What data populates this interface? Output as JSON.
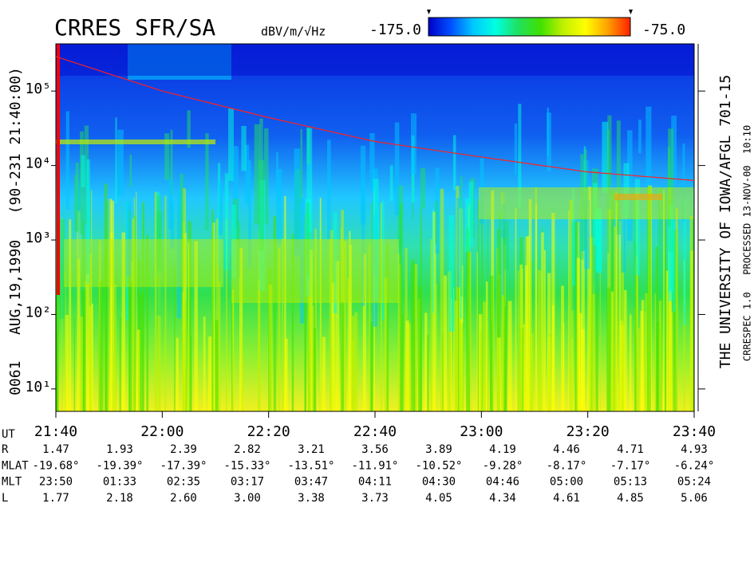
{
  "chart_data": {
    "type": "spectrogram",
    "title": "CRRES SFR/SA",
    "colorbar_label": "dBV/m/√Hz",
    "colorbar_ticks": [
      {
        "value": -175,
        "label": "-175.0"
      },
      {
        "value": -75,
        "label": "-75.0"
      }
    ],
    "colormap": [
      "#0000c8",
      "#0050ff",
      "#00c8ff",
      "#00ffe0",
      "#20e060",
      "#40e000",
      "#c0f000",
      "#ffff00",
      "#ffa000",
      "#ff2000"
    ],
    "left_label": "0061   AUG,19,1990   (90-231 21:40:00)",
    "right_label": "THE UNIVERSITY OF IOWA/AFGL 701-15",
    "right_sublabel": "CRRESPEC 1.0   PROCESSED 13-NOV-00  10:10",
    "log_y": true,
    "xlim": [
      1300,
      1420
    ],
    "ylim": [
      5,
      430000
    ],
    "xticks": [
      {
        "value": 1300,
        "label": "21:40"
      },
      {
        "value": 1320,
        "label": "22:00"
      },
      {
        "value": 1340,
        "label": "22:20"
      },
      {
        "value": 1360,
        "label": "22:40"
      },
      {
        "value": 1380,
        "label": "23:00"
      },
      {
        "value": 1400,
        "label": "23:20"
      },
      {
        "value": 1420,
        "label": "23:40"
      }
    ],
    "yticks": [
      {
        "value": 10,
        "label": "10¹"
      },
      {
        "value": 100,
        "label": "10²"
      },
      {
        "value": 1000,
        "label": "10³"
      },
      {
        "value": 10000,
        "label": "10⁴"
      },
      {
        "value": 100000,
        "label": "10⁵"
      }
    ],
    "series": [
      {
        "color": "#ff2020",
        "x": [
          1300,
          1320,
          1340,
          1360,
          1380,
          1400,
          1420
        ],
        "values": [
          290000,
          100000,
          44000,
          21000,
          13000,
          8200,
          6300
        ]
      }
    ]
  },
  "ephemeris": {
    "ut_label": "UT",
    "rows": [
      {
        "label": "R",
        "values": [
          "1.47",
          "1.93",
          "2.39",
          "2.82",
          "3.21",
          "3.56",
          "3.89",
          "4.19",
          "4.46",
          "4.71",
          "4.93"
        ]
      },
      {
        "label": "MLAT",
        "values": [
          "-19.68°",
          "-19.39°",
          "-17.39°",
          "-15.33°",
          "-13.51°",
          "-11.91°",
          "-10.52°",
          "-9.28°",
          "-8.17°",
          "-7.17°",
          "-6.24°"
        ]
      },
      {
        "label": "MLT",
        "values": [
          "23:50",
          "01:33",
          "02:35",
          "03:17",
          "03:47",
          "04:11",
          "04:30",
          "04:46",
          "05:00",
          "05:13",
          "05:24"
        ]
      },
      {
        "label": "L",
        "values": [
          "1.77",
          "2.18",
          "2.60",
          "3.00",
          "3.38",
          "3.73",
          "4.05",
          "4.34",
          "4.61",
          "4.85",
          "5.06"
        ]
      }
    ]
  }
}
